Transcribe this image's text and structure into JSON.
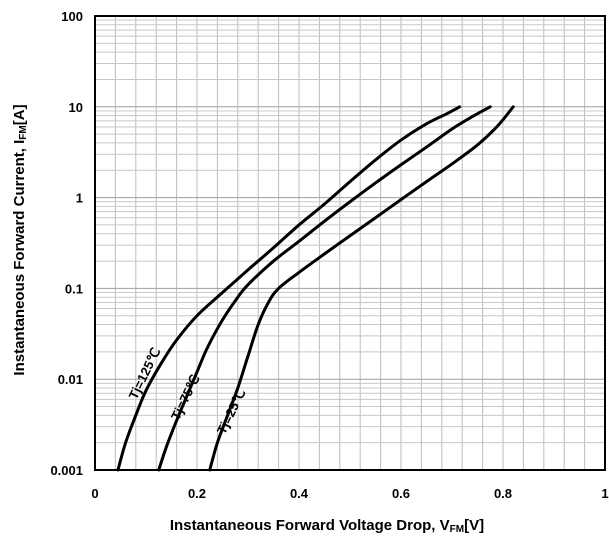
{
  "chart_data": {
    "type": "line",
    "title": "",
    "xlabel": {
      "main": "Instantaneous Forward Voltage Drop, V",
      "sub": "FM",
      "unit": "[V]"
    },
    "ylabel": {
      "main": "Instantaneous Forward Current, I",
      "sub": "FM",
      "unit": "[A]"
    },
    "xlim": [
      0,
      1
    ],
    "ylim": [
      0.001,
      100
    ],
    "y_scale": "log",
    "grid": true,
    "x_ticks": [
      0,
      0.2,
      0.4,
      0.6,
      0.8,
      1
    ],
    "x_tick_labels": [
      "0",
      "0.2",
      "0.4",
      "0.6",
      "0.8",
      "1"
    ],
    "y_ticks": [
      0.001,
      0.01,
      0.1,
      1,
      10,
      100
    ],
    "y_tick_labels": [
      "0.001",
      "0.01",
      "0.1",
      "1",
      "10",
      "100"
    ],
    "series": [
      {
        "name": "Tj=125℃",
        "x": [
          0.045,
          0.06,
          0.08,
          0.1,
          0.13,
          0.16,
          0.2,
          0.25,
          0.3,
          0.35,
          0.4,
          0.45,
          0.5,
          0.55,
          0.6,
          0.65,
          0.69,
          0.715
        ],
        "y": [
          0.001,
          0.002,
          0.004,
          0.0075,
          0.015,
          0.027,
          0.05,
          0.09,
          0.16,
          0.28,
          0.5,
          0.85,
          1.5,
          2.6,
          4.3,
          6.5,
          8.4,
          10
        ]
      },
      {
        "name": "Tj=75℃",
        "x": [
          0.125,
          0.14,
          0.16,
          0.18,
          0.2,
          0.22,
          0.25,
          0.28,
          0.3,
          0.35,
          0.4,
          0.45,
          0.5,
          0.55,
          0.6,
          0.65,
          0.7,
          0.74,
          0.775
        ],
        "y": [
          0.001,
          0.0018,
          0.0035,
          0.0065,
          0.012,
          0.022,
          0.045,
          0.08,
          0.11,
          0.2,
          0.33,
          0.55,
          0.9,
          1.45,
          2.3,
          3.6,
          5.7,
          7.8,
          10
        ]
      },
      {
        "name": "Tj=25℃",
        "x": [
          0.225,
          0.24,
          0.26,
          0.28,
          0.3,
          0.32,
          0.34,
          0.36,
          0.4,
          0.45,
          0.5,
          0.55,
          0.6,
          0.65,
          0.7,
          0.75,
          0.79,
          0.82
        ],
        "y": [
          0.001,
          0.002,
          0.004,
          0.008,
          0.018,
          0.04,
          0.07,
          0.1,
          0.15,
          0.24,
          0.38,
          0.6,
          0.95,
          1.5,
          2.35,
          3.8,
          6.2,
          10
        ]
      }
    ]
  }
}
